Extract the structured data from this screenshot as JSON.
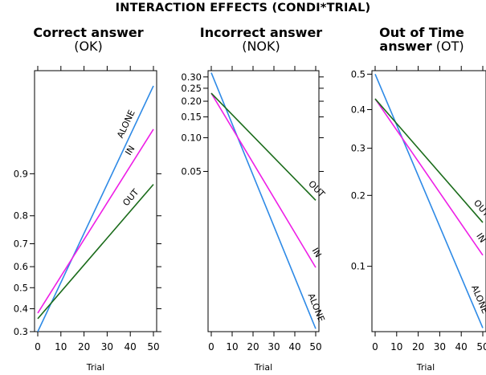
{
  "title": "INTERACTION EFFECTS (CONDI*TRIAL)",
  "colors": {
    "ALONE": "#2e8ae6",
    "IN": "#ee1ee6",
    "OUT": "#1a6b1a"
  },
  "chart_data": [
    {
      "type": "line",
      "title_bold": "Correct answer",
      "title_rest": "(OK)",
      "xlabel": "Trial",
      "xlim": [
        0,
        50
      ],
      "xticks": [
        0,
        10,
        20,
        30,
        40,
        50
      ],
      "yscale": "logit",
      "ylim": [
        0.3,
        0.985
      ],
      "yticks": [
        0.3,
        0.4,
        0.5,
        0.6,
        0.7,
        0.8,
        0.9
      ],
      "ytick_labels": [
        "0.3",
        "0.4",
        "0.5",
        "0.6",
        "0.7",
        "0.8",
        "0.9"
      ],
      "x": [
        0,
        50
      ],
      "series": [
        {
          "name": "ALONE",
          "values": [
            0.3,
            0.98
          ]
        },
        {
          "name": "IN",
          "values": [
            0.38,
            0.955
          ]
        },
        {
          "name": "OUT",
          "values": [
            0.355,
            0.88
          ]
        }
      ]
    },
    {
      "type": "line",
      "title_bold": "Incorrect answer",
      "title_rest": "(NOK)",
      "xlabel": "Trial",
      "xlim": [
        0,
        50
      ],
      "xticks": [
        0,
        10,
        20,
        30,
        40,
        50
      ],
      "yscale": "logit",
      "ylim": [
        0.0015,
        0.33
      ],
      "yticks": [
        0.05,
        0.1,
        0.15,
        0.2,
        0.25,
        0.3
      ],
      "ytick_labels": [
        "0.05",
        "0.10",
        "0.15",
        "0.20",
        "0.25",
        "0.30"
      ],
      "x": [
        0,
        50
      ],
      "series": [
        {
          "name": "ALONE",
          "values": [
            0.32,
            0.0016
          ]
        },
        {
          "name": "IN",
          "values": [
            0.23,
            0.0062
          ]
        },
        {
          "name": "OUT",
          "values": [
            0.23,
            0.027
          ]
        }
      ]
    },
    {
      "type": "line",
      "title_bold": "Out of Time answer",
      "title_rest": "(OT)",
      "xlabel": "Trial",
      "xlim": [
        0,
        50
      ],
      "xticks": [
        0,
        10,
        20,
        30,
        40,
        50
      ],
      "yscale": "logit",
      "ylim": [
        0.05,
        0.51
      ],
      "yticks": [
        0.1,
        0.2,
        0.3,
        0.4,
        0.5
      ],
      "ytick_labels": [
        "0.1",
        "0.2",
        "0.3",
        "0.4",
        "0.5"
      ],
      "x": [
        0,
        50
      ],
      "series": [
        {
          "name": "ALONE",
          "values": [
            0.5,
            0.052
          ]
        },
        {
          "name": "IN",
          "values": [
            0.43,
            0.112
          ]
        },
        {
          "name": "OUT",
          "values": [
            0.43,
            0.155
          ]
        }
      ]
    }
  ]
}
